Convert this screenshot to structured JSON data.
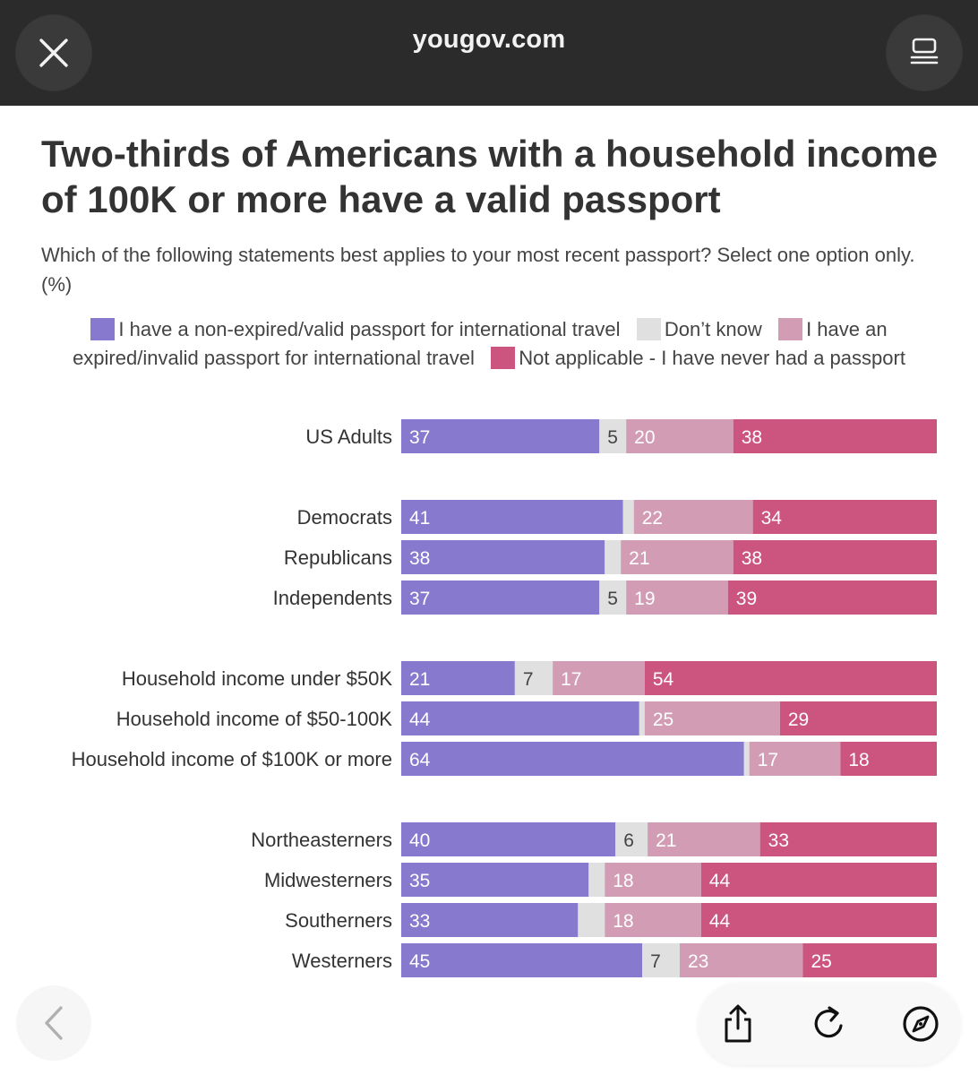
{
  "browser": {
    "domain": "yougov.com",
    "icons": {
      "close": "close-icon",
      "reader": "reader-icon",
      "back": "chevron-left-icon",
      "share": "share-icon",
      "reload": "reload-icon",
      "compass": "compass-icon"
    }
  },
  "article": {
    "title": "Two-thirds of Americans with a household income of 100K or more have a valid passport",
    "subtitle": "Which of the following statements best applies to your most recent passport? Select one option only. (%)"
  },
  "colors": {
    "valid": "#8779cd",
    "dont_know": "#e0e0e0",
    "expired": "#d29db4",
    "never": "#cc5580"
  },
  "chart_data": {
    "type": "bar",
    "orientation": "horizontal",
    "stacked": true,
    "legend": [
      "I have a non-expired/valid passport for international travel",
      "Don’t know",
      "I have an expired/invalid passport for international travel",
      "Not applicable - I have never had a passport"
    ],
    "categories": [
      "US Adults",
      "Democrats",
      "Republicans",
      "Independents",
      "Household income under $50K",
      "Household income of $50-100K",
      "Household income of $100K or more",
      "Northeasterners",
      "Midwesterners",
      "Southerners",
      "Westerners"
    ],
    "groups": [
      [
        0
      ],
      [
        1,
        2,
        3
      ],
      [
        4,
        5,
        6
      ],
      [
        7,
        8,
        9,
        10
      ]
    ],
    "series": [
      {
        "name": "I have a non-expired/valid passport for international travel",
        "color": "#8779cd",
        "values": [
          37,
          41,
          38,
          37,
          21,
          44,
          64,
          40,
          35,
          33,
          45
        ],
        "labels": [
          "37",
          "41",
          "38",
          "37",
          "21",
          "44",
          "64",
          "40",
          "35",
          "33",
          "45"
        ]
      },
      {
        "name": "Don’t know",
        "color": "#e0e0e0",
        "values": [
          5,
          2,
          3,
          5,
          7,
          1,
          1,
          6,
          3,
          5,
          7
        ],
        "labels": [
          "5",
          "",
          "",
          "5",
          "7",
          "",
          "",
          "6",
          "",
          "",
          "7"
        ]
      },
      {
        "name": "I have an expired/invalid passport for international travel",
        "color": "#d29db4",
        "values": [
          20,
          22,
          21,
          19,
          17,
          25,
          17,
          21,
          18,
          18,
          23
        ],
        "labels": [
          "20",
          "22",
          "21",
          "19",
          "17",
          "25",
          "17",
          "21",
          "18",
          "18",
          "23"
        ]
      },
      {
        "name": "Not applicable - I have never had a passport",
        "color": "#cc5580",
        "values": [
          38,
          34,
          38,
          39,
          54,
          29,
          18,
          33,
          44,
          44,
          25
        ],
        "labels": [
          "38",
          "34",
          "38",
          "39",
          "54",
          "29",
          "18",
          "33",
          "44",
          "44",
          "25"
        ]
      }
    ]
  }
}
